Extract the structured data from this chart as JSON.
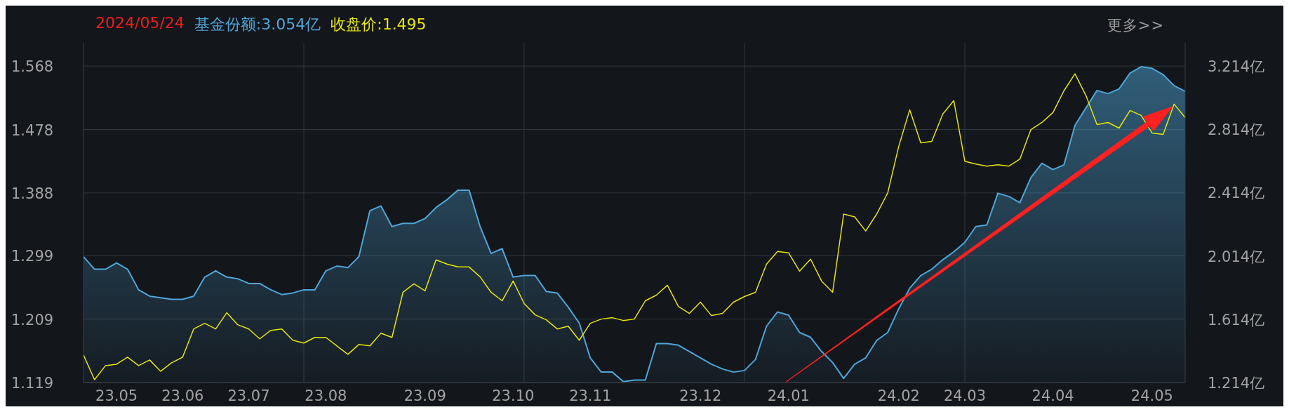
{
  "chart_data": {
    "type": "line",
    "title": "2024/05/24",
    "annotations": [
      "更多>>"
    ],
    "categories": [
      null,
      null,
      null,
      "23.05",
      null,
      null,
      null,
      null,
      null,
      "23.06",
      null,
      null,
      null,
      null,
      null,
      "23.07",
      null,
      null,
      null,
      null,
      null,
      null,
      "23.08",
      null,
      null,
      null,
      null,
      null,
      null,
      null,
      null,
      "23.09",
      null,
      null,
      null,
      null,
      null,
      null,
      null,
      "23.10",
      null,
      null,
      null,
      null,
      null,
      null,
      "23.11",
      null,
      null,
      null,
      null,
      null,
      null,
      null,
      null,
      null,
      "23.12",
      null,
      null,
      null,
      null,
      null,
      null,
      null,
      "24.01",
      null,
      null,
      null,
      null,
      null,
      null,
      null,
      null,
      null,
      "24.02",
      null,
      null,
      null,
      null,
      null,
      "24.03",
      null,
      null,
      null,
      null,
      null,
      null,
      null,
      "24.04",
      null,
      null,
      null,
      null,
      null,
      null,
      null,
      null,
      "24.05",
      null,
      null,
      null
    ],
    "series": [
      {
        "name": "基金份额:3.054亿",
        "type": "area",
        "axis": "y2",
        "color": "#4ea6d8",
        "values": [
          2.01,
          1.93,
          1.93,
          1.97,
          1.93,
          1.8,
          1.76,
          1.75,
          1.74,
          1.74,
          1.76,
          1.88,
          1.92,
          1.88,
          1.87,
          1.84,
          1.84,
          1.8,
          1.77,
          1.78,
          1.8,
          1.8,
          1.92,
          1.95,
          1.94,
          2.01,
          2.3,
          2.33,
          2.2,
          2.22,
          2.22,
          2.25,
          2.32,
          2.37,
          2.43,
          2.43,
          2.2,
          2.03,
          2.06,
          1.88,
          1.89,
          1.89,
          1.79,
          1.78,
          1.69,
          1.59,
          1.37,
          1.28,
          1.28,
          1.22,
          1.23,
          1.23,
          1.46,
          1.46,
          1.45,
          1.41,
          1.37,
          1.33,
          1.3,
          1.28,
          1.29,
          1.36,
          1.57,
          1.66,
          1.64,
          1.53,
          1.5,
          1.41,
          1.34,
          1.24,
          1.33,
          1.37,
          1.48,
          1.53,
          1.68,
          1.81,
          1.89,
          1.93,
          1.99,
          2.04,
          2.1,
          2.2,
          2.21,
          2.41,
          2.39,
          2.35,
          2.51,
          2.6,
          2.56,
          2.59,
          2.84,
          2.95,
          3.06,
          3.04,
          3.07,
          3.17,
          3.21,
          3.2,
          3.16,
          3.09,
          3.054
        ]
      },
      {
        "name": "收盘价:1.495",
        "axis": "y",
        "color": "#e6e600",
        "values": [
          1.158,
          1.123,
          1.143,
          1.145,
          1.155,
          1.143,
          1.151,
          1.135,
          1.147,
          1.155,
          1.195,
          1.203,
          1.195,
          1.218,
          1.201,
          1.195,
          1.181,
          1.193,
          1.195,
          1.179,
          1.175,
          1.183,
          1.183,
          1.171,
          1.159,
          1.173,
          1.171,
          1.189,
          1.183,
          1.247,
          1.259,
          1.249,
          1.293,
          1.287,
          1.283,
          1.283,
          1.269,
          1.247,
          1.235,
          1.263,
          1.231,
          1.215,
          1.208,
          1.195,
          1.199,
          1.179,
          1.203,
          1.209,
          1.211,
          1.207,
          1.209,
          1.235,
          1.243,
          1.257,
          1.227,
          1.217,
          1.233,
          1.214,
          1.217,
          1.233,
          1.241,
          1.247,
          1.287,
          1.305,
          1.303,
          1.277,
          1.294,
          1.263,
          1.247,
          1.358,
          1.354,
          1.334,
          1.358,
          1.388,
          1.454,
          1.506,
          1.459,
          1.461,
          1.5,
          1.519,
          1.433,
          1.429,
          1.426,
          1.428,
          1.426,
          1.436,
          1.478,
          1.488,
          1.502,
          1.533,
          1.557,
          1.526,
          1.485,
          1.488,
          1.48,
          1.505,
          1.498,
          1.473,
          1.471,
          1.514,
          1.495
        ]
      }
    ],
    "ylim": [
      1.119,
      1.601
    ],
    "yticks": [
      1.119,
      1.209,
      1.299,
      1.388,
      1.478,
      1.568
    ],
    "y2lim": [
      1.214,
      3.361
    ],
    "y2ticks": [
      {
        "value": 1.214,
        "label": "1.214亿"
      },
      {
        "value": 1.614,
        "label": "1.614亿"
      },
      {
        "value": 2.014,
        "label": "2.014亿"
      },
      {
        "value": 2.414,
        "label": "2.414亿"
      },
      {
        "value": 2.814,
        "label": "2.814亿"
      },
      {
        "value": 3.214,
        "label": "3.214亿"
      }
    ],
    "grid": true,
    "legend": "top left",
    "marker": "none",
    "line_style": "solid"
  }
}
